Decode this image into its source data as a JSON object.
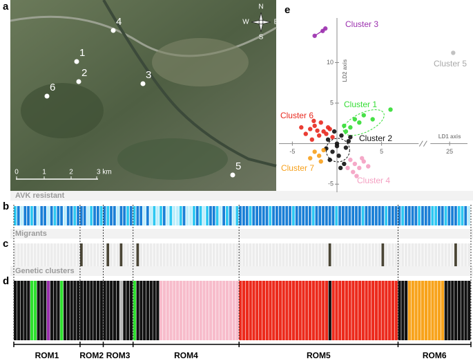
{
  "panel_labels": [
    "a",
    "b",
    "c",
    "d",
    "e"
  ],
  "map": {
    "sites": [
      "1",
      "2",
      "3",
      "4",
      "5",
      "6"
    ],
    "scale_labels": [
      "0",
      "1",
      "2",
      "3 km"
    ],
    "compass": [
      "N",
      "S",
      "W",
      "E"
    ]
  },
  "strips": {
    "b_title": "AVK resistant",
    "c_title": "Migrants",
    "d_title": "Genetic clusters",
    "avk_colors": [
      "#bdeefb",
      "#2ec8f2",
      "#1a7fd6"
    ],
    "migrant_colors": [
      "#ececec",
      "#4a4535"
    ],
    "cluster_colors": [
      "#2ee02e",
      "#111111",
      "#9b2fae",
      "#f7bccb",
      "#b8b8b8",
      "#ec2a1c",
      "#f8a31b"
    ]
  },
  "populations": [
    {
      "name": "ROM1",
      "avk": [
        1,
        2,
        0,
        2,
        2,
        1,
        2,
        0,
        2,
        2,
        0,
        2,
        1,
        2,
        2,
        0,
        2,
        2,
        1,
        2
      ],
      "migrant": [
        0,
        0,
        0,
        0,
        0,
        0,
        0,
        0,
        0,
        0,
        0,
        0,
        0,
        0,
        0,
        0,
        0,
        0,
        0,
        0
      ],
      "cluster": [
        2,
        2,
        2,
        2,
        2,
        1,
        1,
        2,
        2,
        2,
        3,
        2,
        2,
        2,
        1,
        2,
        2,
        2,
        2,
        2
      ]
    },
    {
      "name": "ROM2",
      "avk": [
        2,
        2,
        0,
        1,
        2,
        2,
        1
      ],
      "migrant": [
        1,
        0,
        0,
        0,
        0,
        0,
        0
      ],
      "cluster": [
        2,
        2,
        2,
        2,
        2,
        2,
        2
      ]
    },
    {
      "name": "ROM3",
      "avk": [
        2,
        1,
        2,
        2,
        0,
        2,
        2,
        1,
        2
      ],
      "migrant": [
        0,
        1,
        0,
        0,
        0,
        1,
        0,
        0,
        0
      ],
      "cluster": [
        2,
        2,
        2,
        2,
        2,
        5,
        2,
        2,
        2
      ]
    },
    {
      "name": "ROM4",
      "avk": [
        1,
        2,
        2,
        0,
        2,
        0,
        1,
        0,
        1,
        2,
        0,
        1,
        0,
        0,
        1,
        2,
        0,
        0,
        1,
        2,
        1,
        0,
        1,
        2,
        2,
        1,
        0,
        2,
        1,
        2,
        0,
        1
      ],
      "migrant": [
        0,
        1,
        0,
        0,
        0,
        0,
        0,
        0,
        0,
        0,
        0,
        0,
        0,
        0,
        0,
        0,
        0,
        0,
        0,
        0,
        0,
        0,
        0,
        0,
        0,
        0,
        0,
        0,
        0,
        0,
        0,
        0
      ],
      "cluster": [
        1,
        2,
        2,
        2,
        2,
        2,
        2,
        2,
        4,
        4,
        4,
        4,
        4,
        4,
        4,
        4,
        4,
        4,
        4,
        4,
        4,
        4,
        4,
        4,
        4,
        4,
        4,
        4,
        4,
        4,
        4,
        4
      ]
    },
    {
      "name": "ROM5",
      "avk": [
        2,
        2,
        2,
        1,
        2,
        2,
        2,
        2,
        2,
        1,
        2,
        2,
        2,
        2,
        2,
        2,
        1,
        2,
        2,
        2,
        2,
        2,
        1,
        2,
        2,
        2,
        2,
        2,
        2,
        1,
        2,
        2,
        2,
        2,
        2,
        2,
        2,
        1,
        2,
        2,
        2,
        2,
        2,
        2,
        1,
        2,
        2,
        2
      ],
      "migrant": [
        0,
        0,
        0,
        0,
        0,
        0,
        0,
        0,
        0,
        0,
        0,
        0,
        0,
        0,
        0,
        0,
        0,
        0,
        0,
        0,
        0,
        0,
        0,
        0,
        0,
        0,
        0,
        1,
        0,
        0,
        0,
        0,
        0,
        0,
        0,
        0,
        0,
        0,
        0,
        0,
        0,
        0,
        0,
        1,
        0,
        0,
        0,
        0
      ],
      "cluster": [
        6,
        6,
        6,
        6,
        6,
        6,
        6,
        6,
        6,
        6,
        6,
        6,
        6,
        6,
        6,
        6,
        6,
        6,
        6,
        6,
        6,
        6,
        6,
        6,
        6,
        6,
        6,
        2,
        6,
        6,
        6,
        6,
        6,
        6,
        6,
        6,
        6,
        6,
        6,
        6,
        6,
        6,
        6,
        6,
        6,
        6,
        6,
        6
      ]
    },
    {
      "name": "ROM6",
      "avk": [
        2,
        1,
        2,
        2,
        2,
        2,
        1,
        2,
        2,
        2,
        1,
        1,
        2,
        2,
        1,
        2,
        2,
        2,
        1,
        1,
        2,
        0
      ],
      "migrant": [
        0,
        0,
        0,
        0,
        0,
        0,
        0,
        0,
        0,
        0,
        0,
        0,
        0,
        0,
        0,
        0,
        0,
        1,
        0,
        0,
        0,
        0
      ],
      "cluster": [
        2,
        2,
        2,
        7,
        7,
        7,
        7,
        7,
        7,
        7,
        7,
        7,
        7,
        7,
        2,
        2,
        2,
        2,
        2,
        2,
        2,
        2
      ]
    }
  ],
  "chart_data": {
    "type": "scatter",
    "xlabel": "LD1 axis",
    "ylabel": "LD2 axis",
    "xlim": [
      -6.5,
      27
    ],
    "x_break": [
      9,
      23
    ],
    "ylim": [
      -6,
      15.5
    ],
    "xticks": [
      -5,
      5,
      25
    ],
    "yticks": [
      -5,
      5,
      10
    ],
    "series": [
      {
        "name": "Cluster 1",
        "color": "#33dd33",
        "x": [
          1.5,
          2,
          3,
          1,
          6,
          2.5,
          4,
          0.8
        ],
        "y": [
          2,
          3,
          3.5,
          1.5,
          4.2,
          2.6,
          3,
          2.2
        ]
      },
      {
        "name": "Cluster 2",
        "color": "#111111",
        "x": [
          -1,
          -0.5,
          0,
          0.5,
          1,
          1.3,
          -0.8,
          0.2,
          0.8,
          -0.3,
          0,
          1.5,
          0.4,
          -1.2
        ],
        "y": [
          0.5,
          -1,
          0,
          1,
          -0.5,
          0.3,
          -2,
          -1.5,
          -2.5,
          1.5,
          -0.3,
          0.8,
          -3,
          -0.6
        ]
      },
      {
        "name": "Cluster 3",
        "color": "#9b2fae",
        "x": [
          -1.3,
          -2.5,
          -1.6
        ],
        "y": [
          14.2,
          13.3,
          13.9
        ]
      },
      {
        "name": "Cluster 4",
        "color": "#f4a0c2",
        "x": [
          1.5,
          2,
          2.5,
          3,
          1.8,
          3.5,
          2.2,
          1.2,
          2.8
        ],
        "y": [
          -2,
          -2.5,
          -3,
          -2.2,
          -3.5,
          -2.8,
          -4,
          -3,
          -1.8
        ]
      },
      {
        "name": "Cluster 5",
        "color": "#bbbbbb",
        "x": [
          25.4
        ],
        "y": [
          11.2
        ]
      },
      {
        "name": "Cluster 6",
        "color": "#e8281e",
        "x": [
          -3,
          -2.5,
          -2,
          -1.5,
          -1,
          -0.5,
          -3.5,
          -2.8,
          -1.8,
          -1.2,
          -2.2,
          -0.8,
          -4,
          -2.6
        ],
        "y": [
          1.8,
          2.2,
          1,
          1.5,
          2,
          0.8,
          1.2,
          0.5,
          2.6,
          1.2,
          1.6,
          1.8,
          2,
          2.8
        ]
      },
      {
        "name": "Cluster 7",
        "color": "#f7a01b",
        "x": [
          -2.5,
          -2,
          -1.5,
          -3,
          -1.8
        ],
        "y": [
          -1,
          -1.5,
          -0.8,
          -1.8,
          -2.2
        ]
      }
    ]
  }
}
